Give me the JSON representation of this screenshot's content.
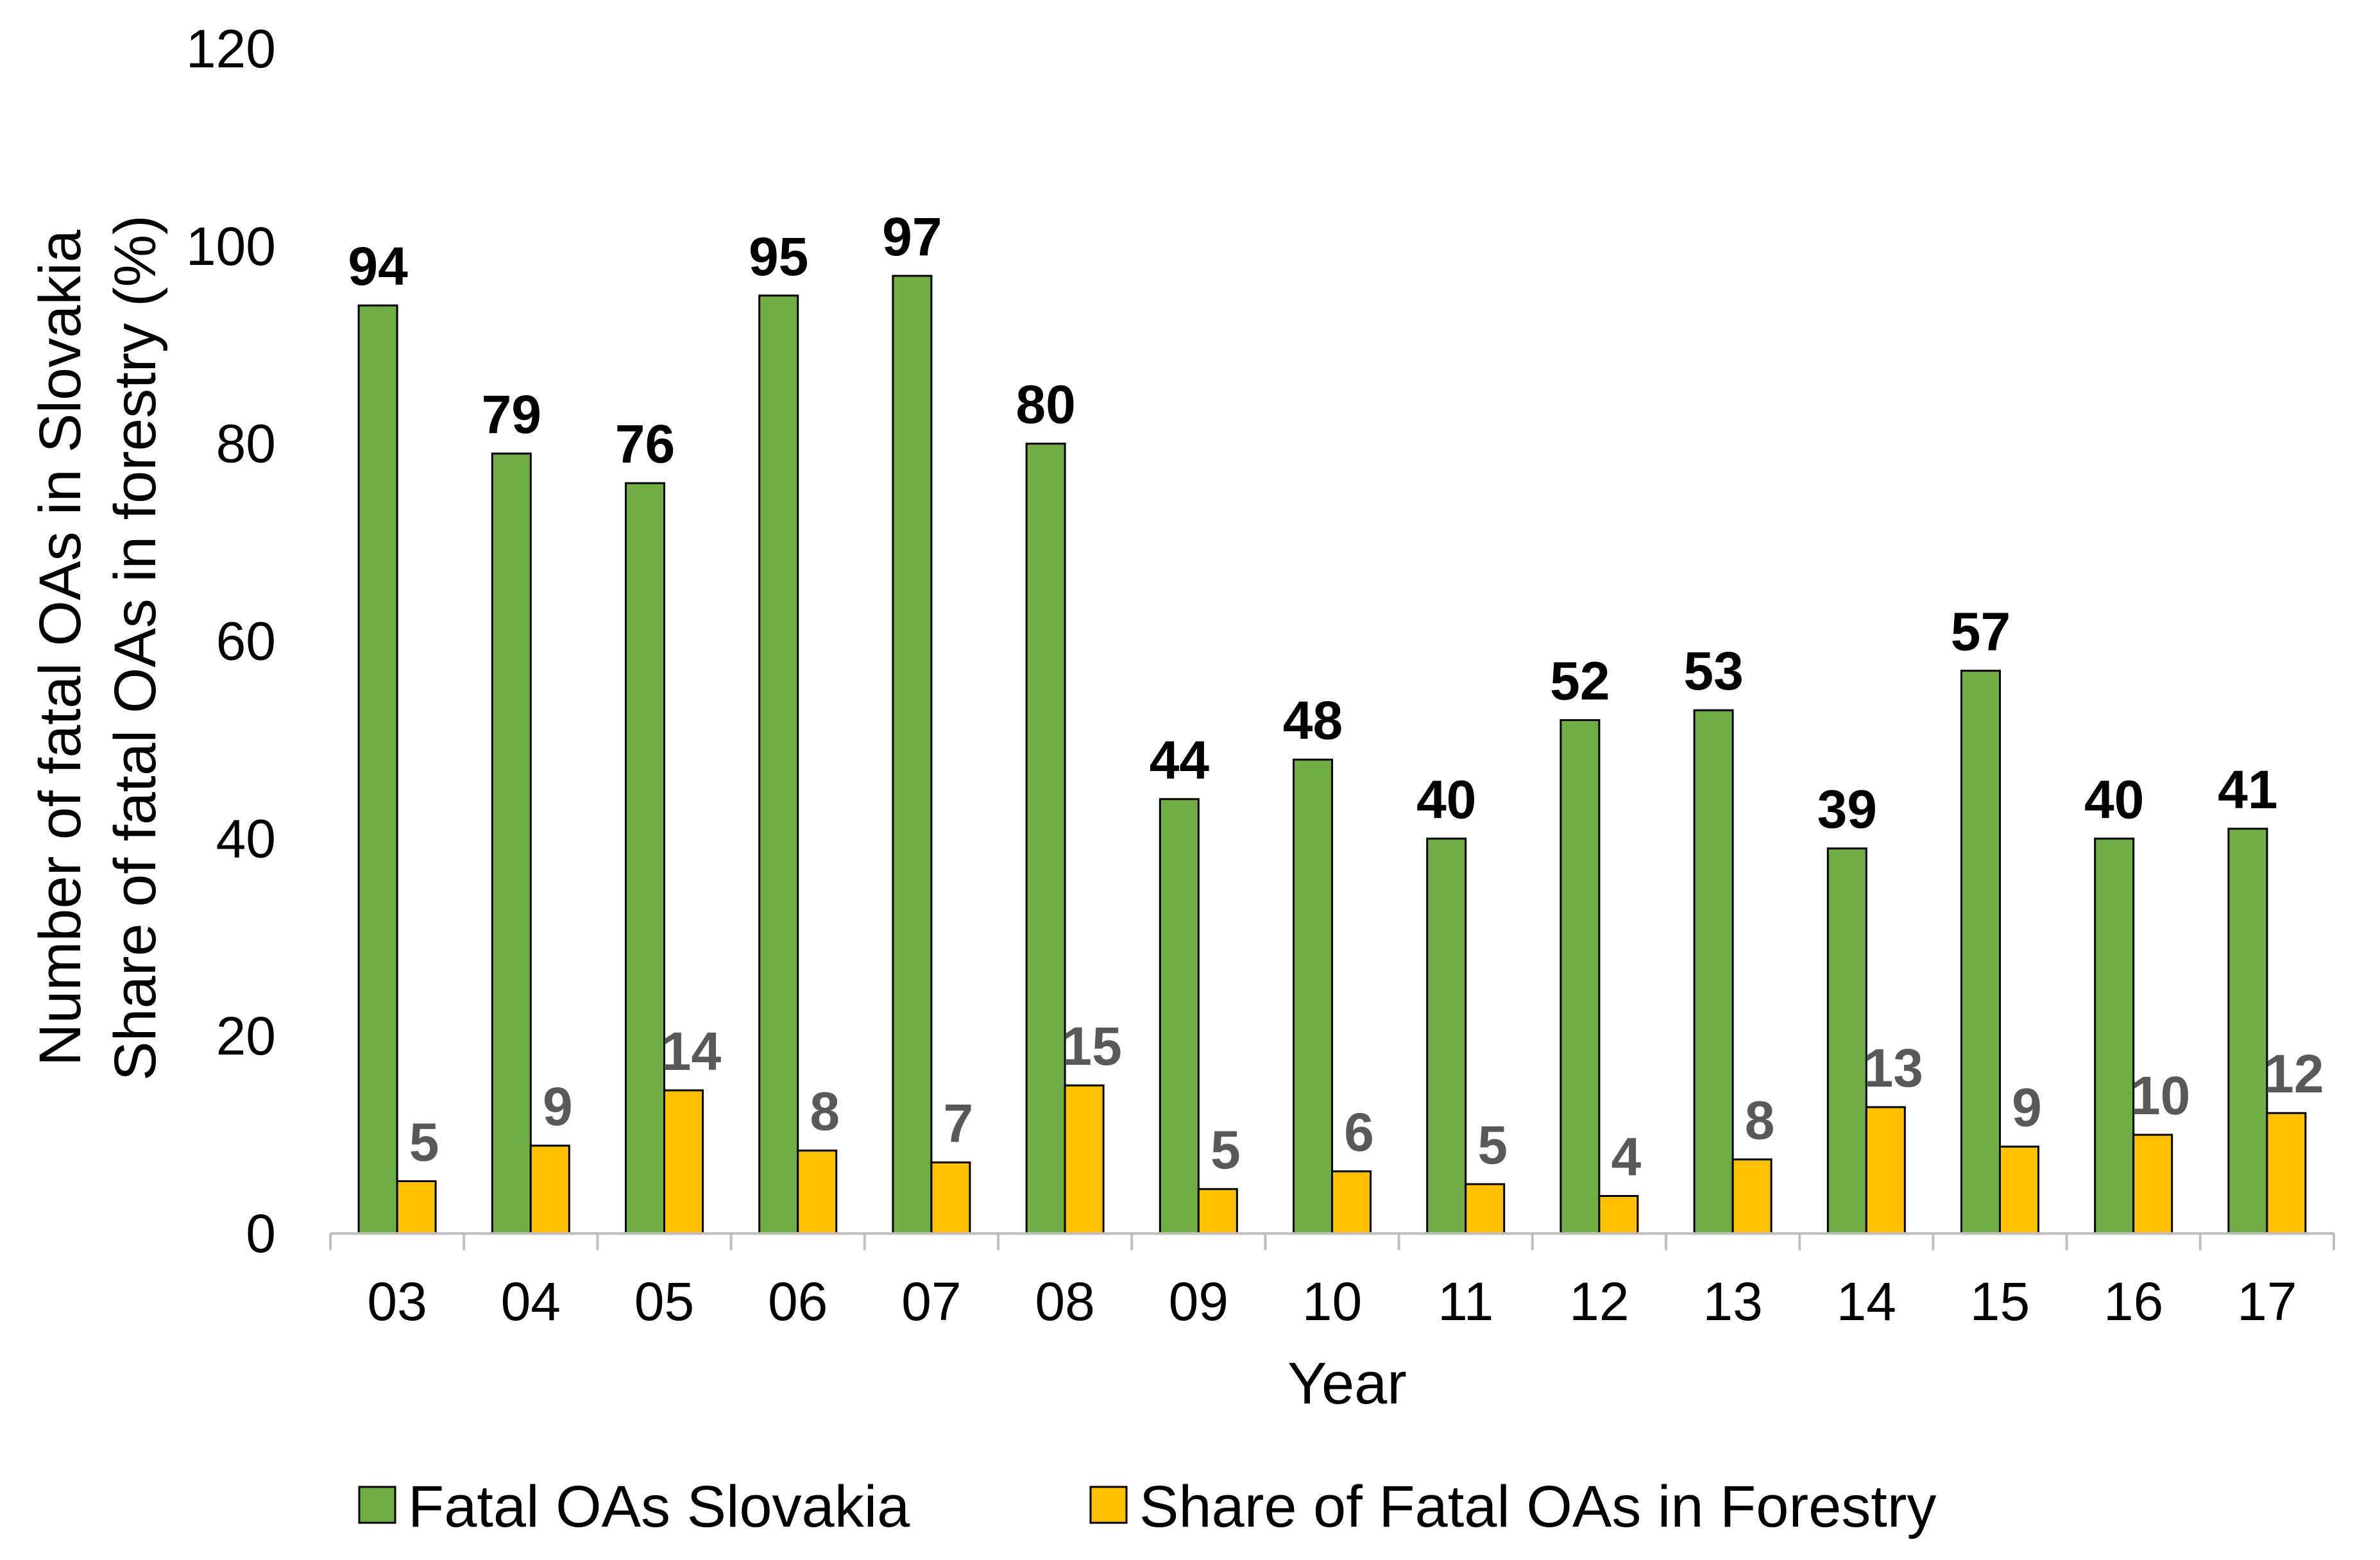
{
  "chart_data": {
    "type": "bar",
    "title": "",
    "xlabel": "Year",
    "ylabel_lines": [
      "Number of fatal OAs in Slovakia",
      "Share of fatal OAs in forestry (%)"
    ],
    "ylim": [
      0,
      120
    ],
    "yticks": [
      0,
      20,
      40,
      60,
      80,
      100,
      120
    ],
    "grid": false,
    "legend_position": "bottom",
    "categories": [
      "03",
      "04",
      "05",
      "06",
      "07",
      "08",
      "09",
      "10",
      "11",
      "12",
      "13",
      "14",
      "15",
      "16",
      "17"
    ],
    "series": [
      {
        "name": "Fatal OAs Slovakia",
        "color": "#70AD47",
        "label_color": "#000000",
        "values": [
          94,
          79,
          76,
          95,
          97,
          80,
          44,
          48,
          40,
          52,
          53,
          39,
          57,
          40,
          41
        ],
        "labels": [
          "94",
          "79",
          "76",
          "95",
          "97",
          "80",
          "44",
          "48",
          "40",
          "52",
          "53",
          "39",
          "57",
          "40",
          "41"
        ]
      },
      {
        "name": "Share of Fatal OAs in Forestry",
        "color": "#FFC000",
        "label_color": "#595959",
        "values": [
          5.3,
          8.9,
          14.5,
          8.4,
          7.2,
          15,
          4.5,
          6.3,
          5,
          3.8,
          7.5,
          12.8,
          8.8,
          10,
          12.2
        ],
        "labels": [
          "5",
          "9",
          "14",
          "8",
          "7",
          "15",
          "5",
          "6",
          "5",
          "4",
          "8",
          "13",
          "9",
          "10",
          "12"
        ]
      }
    ]
  }
}
